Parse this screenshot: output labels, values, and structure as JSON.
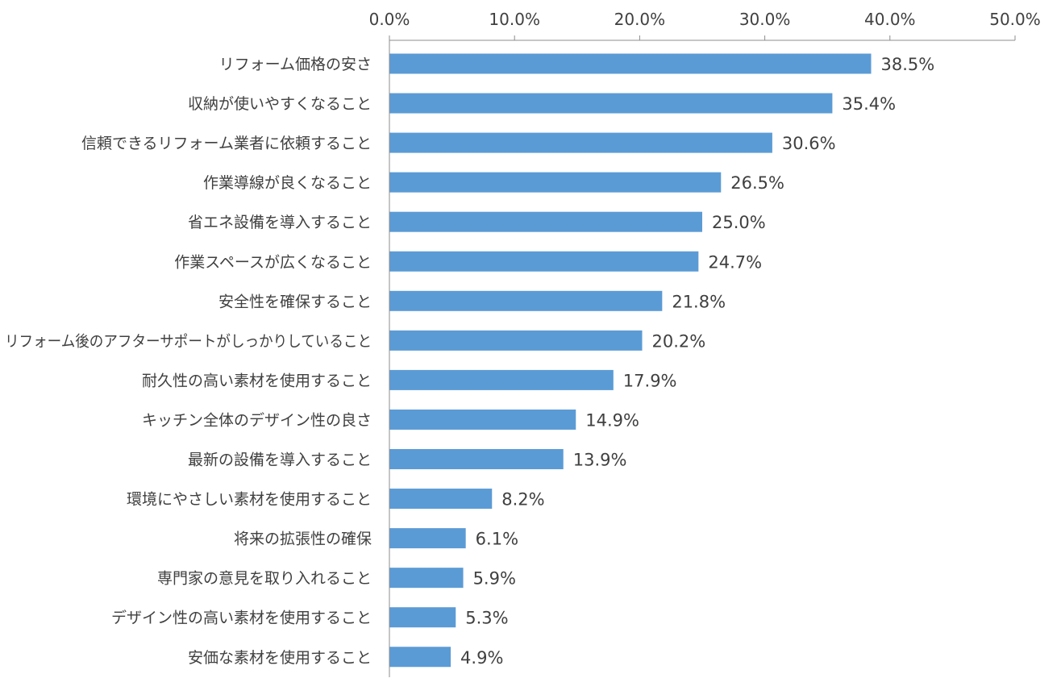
{
  "chart_data": {
    "type": "bar",
    "orientation": "horizontal",
    "title": "",
    "xlabel": "",
    "ylabel": "",
    "xlim": [
      0,
      50
    ],
    "x_ticks": [
      "0.0%",
      "10.0%",
      "20.0%",
      "30.0%",
      "40.0%",
      "50.0%"
    ],
    "x_tick_values": [
      0,
      10,
      20,
      30,
      40,
      50
    ],
    "axis_position": "top",
    "grid": false,
    "legend": "none",
    "bar_color": "#5B9BD5",
    "categories": [
      "リフォーム価格の安さ",
      "収納が使いやすくなること",
      "信頼できるリフォーム業者に依頼すること",
      "作業導線が良くなること",
      "省エネ設備を導入すること",
      "作業スペースが広くなること",
      "安全性を確保すること",
      "リフォーム後のアフターサポートがしっかりしていること",
      "耐久性の高い素材を使用すること",
      "キッチン全体のデザイン性の良さ",
      "最新の設備を導入すること",
      "環境にやさしい素材を使用すること",
      "将来の拡張性の確保",
      "専門家の意見を取り入れること",
      "デザイン性の高い素材を使用すること",
      "安価な素材を使用すること"
    ],
    "values": [
      38.5,
      35.4,
      30.6,
      26.5,
      25.0,
      24.7,
      21.8,
      20.2,
      17.9,
      14.9,
      13.9,
      8.2,
      6.1,
      5.9,
      5.3,
      4.9
    ],
    "value_labels": [
      "38.5%",
      "35.4%",
      "30.6%",
      "26.5%",
      "25.0%",
      "24.7%",
      "21.8%",
      "20.2%",
      "17.9%",
      "14.9%",
      "13.9%",
      "8.2%",
      "6.1%",
      "5.9%",
      "5.3%",
      "4.9%"
    ]
  }
}
